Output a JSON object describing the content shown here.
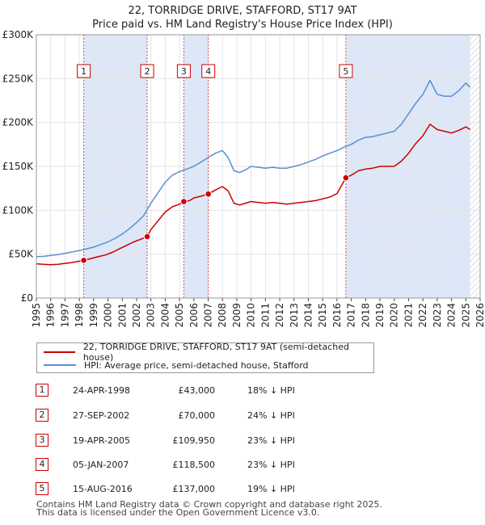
{
  "chart_data": {
    "type": "line",
    "title_line1": "22, TORRIDGE DRIVE, STAFFORD, ST17 9AT",
    "title_line2": "Price paid vs. HM Land Registry's House Price Index (HPI)",
    "ylim": [
      0,
      300000
    ],
    "xlim": [
      1995,
      2026
    ],
    "yticks": [
      {
        "value": 0,
        "label": "£0"
      },
      {
        "value": 50000,
        "label": "£50K"
      },
      {
        "value": 100000,
        "label": "£100K"
      },
      {
        "value": 150000,
        "label": "£150K"
      },
      {
        "value": 200000,
        "label": "£200K"
      },
      {
        "value": 250000,
        "label": "£250K"
      },
      {
        "value": 300000,
        "label": "£300K"
      }
    ],
    "xticks": [
      "1995",
      "1996",
      "1997",
      "1998",
      "1999",
      "2000",
      "2001",
      "2002",
      "2003",
      "2004",
      "2005",
      "2006",
      "2007",
      "2008",
      "2009",
      "2010",
      "2011",
      "2012",
      "2013",
      "2014",
      "2015",
      "2016",
      "2017",
      "2018",
      "2019",
      "2020",
      "2021",
      "2022",
      "2023",
      "2024",
      "2025",
      "2026"
    ],
    "series": [
      {
        "name": "22, TORRIDGE DRIVE, STAFFORD, ST17 9AT (semi-detached house)",
        "color": "#cc0000",
        "x": [
          1995.0,
          1995.5,
          1996.0,
          1996.5,
          1997.0,
          1997.5,
          1998.0,
          1998.31,
          1998.8,
          1999.3,
          1999.8,
          2000.3,
          2000.8,
          2001.3,
          2001.8,
          2002.3,
          2002.74,
          2003.0,
          2003.5,
          2004.0,
          2004.5,
          2005.0,
          2005.3,
          2005.7,
          2006.0,
          2006.5,
          2007.01,
          2007.5,
          2008.0,
          2008.4,
          2008.8,
          2009.2,
          2009.6,
          2010.0,
          2010.5,
          2011.0,
          2011.5,
          2012.0,
          2012.5,
          2013.0,
          2013.5,
          2014.0,
          2014.5,
          2015.0,
          2015.5,
          2016.0,
          2016.62,
          2017.0,
          2017.5,
          2018.0,
          2018.5,
          2019.0,
          2019.5,
          2020.0,
          2020.5,
          2021.0,
          2021.5,
          2022.0,
          2022.5,
          2023.0,
          2023.5,
          2024.0,
          2024.5,
          2025.0,
          2025.3
        ],
        "values": [
          39000,
          38500,
          38000,
          38500,
          39500,
          40500,
          42000,
          43000,
          45000,
          47000,
          49000,
          52000,
          56000,
          60000,
          64000,
          67000,
          70000,
          78000,
          88000,
          98000,
          104000,
          107000,
          109950,
          111000,
          114000,
          116000,
          118500,
          123000,
          127000,
          122000,
          108000,
          106000,
          108000,
          110000,
          109000,
          108000,
          109000,
          108000,
          107000,
          108000,
          109000,
          110000,
          111000,
          113000,
          115000,
          119000,
          137000,
          140000,
          145000,
          147000,
          148000,
          150000,
          150000,
          150000,
          156000,
          165000,
          176000,
          185000,
          198000,
          192000,
          190000,
          188000,
          191000,
          195000,
          192000
        ]
      },
      {
        "name": "HPI: Average price, semi-detached house, Stafford",
        "color": "#5b8fd0",
        "x": [
          1995.0,
          1995.5,
          1996.0,
          1996.5,
          1997.0,
          1997.5,
          1998.0,
          1998.5,
          1999.0,
          1999.5,
          2000.0,
          2000.5,
          2001.0,
          2001.5,
          2002.0,
          2002.5,
          2003.0,
          2003.5,
          2004.0,
          2004.5,
          2005.0,
          2005.5,
          2006.0,
          2006.5,
          2007.0,
          2007.5,
          2008.0,
          2008.4,
          2008.8,
          2009.2,
          2009.6,
          2010.0,
          2010.5,
          2011.0,
          2011.5,
          2012.0,
          2012.5,
          2013.0,
          2013.5,
          2014.0,
          2014.5,
          2015.0,
          2015.5,
          2016.0,
          2016.5,
          2017.0,
          2017.5,
          2018.0,
          2018.5,
          2019.0,
          2019.5,
          2020.0,
          2020.5,
          2021.0,
          2021.5,
          2022.0,
          2022.5,
          2023.0,
          2023.5,
          2024.0,
          2024.5,
          2025.0,
          2025.3
        ],
        "values": [
          47000,
          47500,
          48500,
          49500,
          51000,
          52500,
          54000,
          56000,
          58000,
          61000,
          64000,
          68000,
          73000,
          79000,
          86000,
          94000,
          108000,
          120000,
          132000,
          140000,
          144000,
          147000,
          150000,
          155000,
          160000,
          165000,
          168000,
          160000,
          145000,
          143000,
          146000,
          150000,
          149000,
          148000,
          149000,
          148000,
          148000,
          150000,
          152000,
          155000,
          158000,
          162000,
          165000,
          168000,
          172000,
          175000,
          180000,
          183000,
          184000,
          186000,
          188000,
          190000,
          198000,
          210000,
          222000,
          232000,
          248000,
          232000,
          230000,
          230000,
          236000,
          245000,
          240000
        ]
      }
    ],
    "transactions": [
      {
        "num": "1",
        "date": "24-APR-1998",
        "x": 1998.31,
        "price": 43000,
        "price_label": "£43,000",
        "hpi": "18% ↓ HPI"
      },
      {
        "num": "2",
        "date": "27-SEP-2002",
        "x": 2002.74,
        "price": 70000,
        "price_label": "£70,000",
        "hpi": "24% ↓ HPI"
      },
      {
        "num": "3",
        "date": "19-APR-2005",
        "x": 2005.3,
        "price": 109950,
        "price_label": "£109,950",
        "hpi": "23% ↓ HPI"
      },
      {
        "num": "4",
        "date": "05-JAN-2007",
        "x": 2007.01,
        "price": 118500,
        "price_label": "£118,500",
        "hpi": "23% ↓ HPI"
      },
      {
        "num": "5",
        "date": "15-AUG-2016",
        "x": 2016.62,
        "price": 137000,
        "price_label": "£137,000",
        "hpi": "19% ↓ HPI"
      }
    ],
    "shaded_spans": [
      [
        1998.31,
        2002.74
      ],
      [
        2005.3,
        2007.01
      ],
      [
        2016.62,
        2025.3
      ]
    ],
    "hatched_from": 2025.3
  },
  "legend": {
    "property_label": "22, TORRIDGE DRIVE, STAFFORD, ST17 9AT (semi-detached house)",
    "hpi_label": "HPI: Average price, semi-detached house, Stafford"
  },
  "colors": {
    "property": "#cc0000",
    "hpi": "#5b8fd0",
    "shade": "#dde7f7"
  },
  "footer": {
    "line1": "Contains HM Land Registry data © Crown copyright and database right 2025.",
    "line2": "This data is licensed under the Open Government Licence v3.0."
  }
}
